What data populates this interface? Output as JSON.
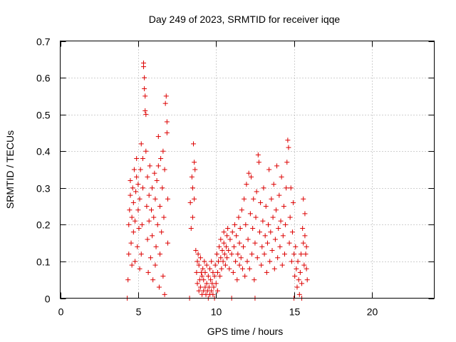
{
  "chart_data": {
    "type": "scatter",
    "title": "Day 249 of 2023, SRMTID for receiver iqqe",
    "xlabel": "GPS time / hours",
    "ylabel": "SRMTID / TECUs",
    "xlim": [
      0,
      24
    ],
    "ylim": [
      0,
      0.7
    ],
    "xticks": [
      0,
      5,
      10,
      15,
      20
    ],
    "yticks": [
      0,
      0.1,
      0.2,
      0.3,
      0.4,
      0.5,
      0.6,
      0.7
    ],
    "xtick_labels": [
      "0",
      "5",
      "10",
      "15",
      "20"
    ],
    "ytick_labels": [
      "0",
      "0.1",
      "0.2",
      "0.3",
      "0.4",
      "0.5",
      "0.6",
      "0.7"
    ],
    "grid": true,
    "marker": "+",
    "color": "#dd0000",
    "series": [
      {
        "name": "SRMTID",
        "points": [
          [
            4.3,
            0.0
          ],
          [
            4.35,
            0.05
          ],
          [
            4.4,
            0.12
          ],
          [
            4.4,
            0.2
          ],
          [
            4.45,
            0.24
          ],
          [
            4.5,
            0.28
          ],
          [
            4.5,
            0.32
          ],
          [
            4.55,
            0.15
          ],
          [
            4.6,
            0.09
          ],
          [
            4.6,
            0.22
          ],
          [
            4.65,
            0.3
          ],
          [
            4.7,
            0.18
          ],
          [
            4.7,
            0.26
          ],
          [
            4.75,
            0.35
          ],
          [
            4.8,
            0.1
          ],
          [
            4.8,
            0.21
          ],
          [
            4.85,
            0.29
          ],
          [
            4.9,
            0.33
          ],
          [
            4.9,
            0.38
          ],
          [
            4.95,
            0.14
          ],
          [
            5.0,
            0.24
          ],
          [
            5.0,
            0.31
          ],
          [
            5.05,
            0.19
          ],
          [
            5.1,
            0.08
          ],
          [
            5.1,
            0.27
          ],
          [
            5.15,
            0.35
          ],
          [
            5.2,
            0.42
          ],
          [
            5.2,
            0.12
          ],
          [
            5.25,
            0.2
          ],
          [
            5.3,
            0.3
          ],
          [
            5.3,
            0.38
          ],
          [
            5.35,
            0.64
          ],
          [
            5.35,
            0.63
          ],
          [
            5.4,
            0.6
          ],
          [
            5.4,
            0.57
          ],
          [
            5.45,
            0.55
          ],
          [
            5.45,
            0.51
          ],
          [
            5.5,
            0.5
          ],
          [
            5.5,
            0.4
          ],
          [
            5.55,
            0.25
          ],
          [
            5.6,
            0.33
          ],
          [
            5.6,
            0.16
          ],
          [
            5.65,
            0.07
          ],
          [
            5.7,
            0.28
          ],
          [
            5.7,
            0.21
          ],
          [
            5.75,
            0.36
          ],
          [
            5.8,
            0.11
          ],
          [
            5.85,
            0.24
          ],
          [
            5.9,
            0.3
          ],
          [
            5.9,
            0.17
          ],
          [
            5.95,
            0.05
          ],
          [
            6.0,
            0.22
          ],
          [
            6.05,
            0.34
          ],
          [
            6.1,
            0.09
          ],
          [
            6.1,
            0.27
          ],
          [
            6.15,
            0.14
          ],
          [
            6.2,
            0.32
          ],
          [
            6.25,
            0.2
          ],
          [
            6.3,
            0.36
          ],
          [
            6.3,
            0.44
          ],
          [
            6.35,
            0.03
          ],
          [
            6.4,
            0.12
          ],
          [
            6.4,
            0.25
          ],
          [
            6.45,
            0.38
          ],
          [
            6.5,
            0.18
          ],
          [
            6.55,
            0.3
          ],
          [
            6.6,
            0.06
          ],
          [
            6.6,
            0.4
          ],
          [
            6.65,
            0.22
          ],
          [
            6.7,
            0.01
          ],
          [
            6.7,
            0.35
          ],
          [
            6.75,
            0.53
          ],
          [
            6.8,
            0.55
          ],
          [
            6.85,
            0.48
          ],
          [
            6.85,
            0.45
          ],
          [
            6.9,
            0.27
          ],
          [
            6.9,
            0.15
          ],
          [
            8.3,
            0.0
          ],
          [
            8.35,
            0.26
          ],
          [
            8.4,
            0.19
          ],
          [
            8.45,
            0.33
          ],
          [
            8.5,
            0.22
          ],
          [
            8.5,
            0.3
          ],
          [
            8.55,
            0.42
          ],
          [
            8.6,
            0.37
          ],
          [
            8.6,
            0.27
          ],
          [
            8.65,
            0.35
          ],
          [
            8.7,
            0.13
          ],
          [
            8.75,
            0.07
          ],
          [
            8.8,
            0.1
          ],
          [
            8.8,
            0.04
          ],
          [
            8.85,
            0.12
          ],
          [
            8.9,
            0.02
          ],
          [
            8.9,
            0.09
          ],
          [
            8.95,
            0.05
          ],
          [
            9.0,
            0.11
          ],
          [
            9.0,
            0.03
          ],
          [
            9.05,
            0.07
          ],
          [
            9.1,
            0.01
          ],
          [
            9.1,
            0.06
          ],
          [
            9.15,
            0.08
          ],
          [
            9.2,
            0.02
          ],
          [
            9.2,
            0.05
          ],
          [
            9.25,
            0.1
          ],
          [
            9.3,
            0.03
          ],
          [
            9.3,
            0.07
          ],
          [
            9.35,
            0.01
          ],
          [
            9.4,
            0.04
          ],
          [
            9.4,
            0.09
          ],
          [
            9.45,
            0.02
          ],
          [
            9.5,
            0.06
          ],
          [
            9.5,
            0.0
          ],
          [
            9.55,
            0.03
          ],
          [
            9.6,
            0.08
          ],
          [
            9.6,
            0.01
          ],
          [
            9.65,
            0.05
          ],
          [
            9.7,
            0.02
          ],
          [
            9.7,
            0.1
          ],
          [
            9.75,
            0.04
          ],
          [
            9.8,
            0.01
          ],
          [
            9.8,
            0.07
          ],
          [
            9.85,
            0.03
          ],
          [
            9.9,
            0.06
          ],
          [
            9.9,
            0.0
          ],
          [
            9.95,
            0.09
          ],
          [
            10.0,
            0.04
          ],
          [
            10.05,
            0.12
          ],
          [
            10.1,
            0.07
          ],
          [
            10.1,
            0.02
          ],
          [
            10.15,
            0.1
          ],
          [
            10.2,
            0.14
          ],
          [
            10.25,
            0.06
          ],
          [
            10.3,
            0.11
          ],
          [
            10.3,
            0.16
          ],
          [
            10.35,
            0.08
          ],
          [
            10.4,
            0.13
          ],
          [
            10.45,
            0.1
          ],
          [
            10.5,
            0.15
          ],
          [
            10.5,
            0.18
          ],
          [
            10.55,
            0.12
          ],
          [
            10.6,
            0.09
          ],
          [
            10.65,
            0.14
          ],
          [
            10.7,
            0.17
          ],
          [
            10.7,
            0.11
          ],
          [
            10.75,
            0.19
          ],
          [
            10.8,
            0.13
          ],
          [
            10.85,
            0.08
          ],
          [
            10.9,
            0.16
          ],
          [
            11.0,
            0.0
          ],
          [
            11.0,
            0.12
          ],
          [
            11.05,
            0.18
          ],
          [
            11.1,
            0.07
          ],
          [
            11.15,
            0.14
          ],
          [
            11.2,
            0.2
          ],
          [
            11.25,
            0.1
          ],
          [
            11.3,
            0.17
          ],
          [
            11.35,
            0.05
          ],
          [
            11.4,
            0.12
          ],
          [
            11.45,
            0.22
          ],
          [
            11.5,
            0.09
          ],
          [
            11.5,
            0.15
          ],
          [
            11.55,
            0.19
          ],
          [
            11.6,
            0.11
          ],
          [
            11.65,
            0.24
          ],
          [
            11.7,
            0.08
          ],
          [
            11.75,
            0.14
          ],
          [
            11.8,
            0.27
          ],
          [
            11.85,
            0.06
          ],
          [
            11.9,
            0.2
          ],
          [
            11.95,
            0.31
          ],
          [
            12.0,
            0.1
          ],
          [
            12.05,
            0.16
          ],
          [
            12.1,
            0.34
          ],
          [
            12.15,
            0.08
          ],
          [
            12.2,
            0.23
          ],
          [
            12.25,
            0.33
          ],
          [
            12.3,
            0.12
          ],
          [
            12.35,
            0.19
          ],
          [
            12.4,
            0.27
          ],
          [
            12.45,
            0.05
          ],
          [
            12.5,
            0.0
          ],
          [
            12.5,
            0.15
          ],
          [
            12.55,
            0.22
          ],
          [
            12.6,
            0.29
          ],
          [
            12.65,
            0.11
          ],
          [
            12.7,
            0.39
          ],
          [
            12.75,
            0.37
          ],
          [
            12.8,
            0.18
          ],
          [
            12.85,
            0.26
          ],
          [
            12.9,
            0.09
          ],
          [
            12.95,
            0.14
          ],
          [
            13.0,
            0.21
          ],
          [
            13.05,
            0.3
          ],
          [
            13.1,
            0.12
          ],
          [
            13.15,
            0.17
          ],
          [
            13.2,
            0.25
          ],
          [
            13.25,
            0.07
          ],
          [
            13.3,
            0.15
          ],
          [
            13.35,
            0.2
          ],
          [
            13.4,
            0.35
          ],
          [
            13.45,
            0.1
          ],
          [
            13.5,
            0.18
          ],
          [
            13.55,
            0.27
          ],
          [
            13.6,
            0.13
          ],
          [
            13.65,
            0.22
          ],
          [
            13.7,
            0.31
          ],
          [
            13.75,
            0.08
          ],
          [
            13.8,
            0.16
          ],
          [
            13.85,
            0.24
          ],
          [
            13.9,
            0.36
          ],
          [
            13.95,
            0.11
          ],
          [
            14.0,
            0.19
          ],
          [
            14.05,
            0.28
          ],
          [
            14.1,
            0.14
          ],
          [
            14.15,
            0.21
          ],
          [
            14.2,
            0.33
          ],
          [
            14.25,
            0.09
          ],
          [
            14.3,
            0.17
          ],
          [
            14.35,
            0.25
          ],
          [
            14.4,
            0.12
          ],
          [
            14.45,
            0.2
          ],
          [
            14.5,
            0.3
          ],
          [
            14.55,
            0.37
          ],
          [
            14.6,
            0.43
          ],
          [
            14.65,
            0.41
          ],
          [
            14.7,
            0.15
          ],
          [
            14.75,
            0.22
          ],
          [
            14.8,
            0.3
          ],
          [
            14.85,
            0.1
          ],
          [
            14.9,
            0.18
          ],
          [
            14.95,
            0.26
          ],
          [
            15.0,
            0.0
          ],
          [
            15.0,
            0.12
          ],
          [
            15.05,
            0.06
          ],
          [
            15.1,
            0.14
          ],
          [
            15.15,
            0.08
          ],
          [
            15.2,
            0.03
          ],
          [
            15.25,
            0.1
          ],
          [
            15.3,
            0.05
          ],
          [
            15.35,
            0.01
          ],
          [
            15.4,
            0.07
          ],
          [
            15.45,
            0.12
          ],
          [
            15.5,
            0.0
          ],
          [
            15.5,
            0.04
          ],
          [
            15.55,
            0.19
          ],
          [
            15.6,
            0.27
          ],
          [
            15.6,
            0.15
          ],
          [
            15.65,
            0.09
          ],
          [
            15.7,
            0.17
          ],
          [
            15.7,
            0.23
          ],
          [
            15.75,
            0.12
          ],
          [
            15.8,
            0.08
          ],
          [
            15.8,
            0.14
          ],
          [
            15.85,
            0.05
          ]
        ]
      }
    ]
  }
}
